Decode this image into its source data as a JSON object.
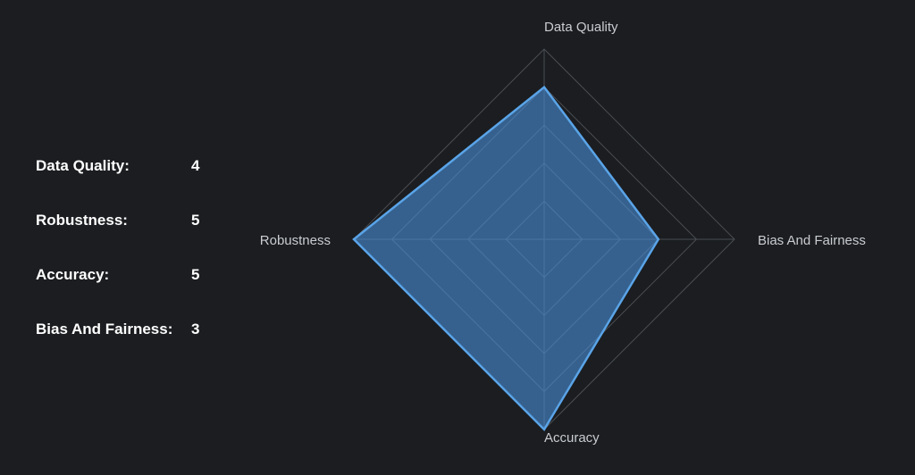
{
  "scores": [
    {
      "label": "Data Quality:",
      "value": "4"
    },
    {
      "label": "Robustness:",
      "value": "5"
    },
    {
      "label": "Accuracy:",
      "value": "5"
    },
    {
      "label": "Bias And Fairness:",
      "value": "3"
    }
  ],
  "chart_data": {
    "type": "radar",
    "axes": [
      "Data Quality",
      "Bias And Fairness",
      "Accuracy",
      "Robustness"
    ],
    "values": [
      4,
      3,
      5,
      5
    ],
    "rmax": 5,
    "levels": 5,
    "colors": {
      "fill": "#4a90d9",
      "stroke": "#5aa4e8",
      "grid": "#4a4d52",
      "label": "#c9ccd1"
    }
  }
}
